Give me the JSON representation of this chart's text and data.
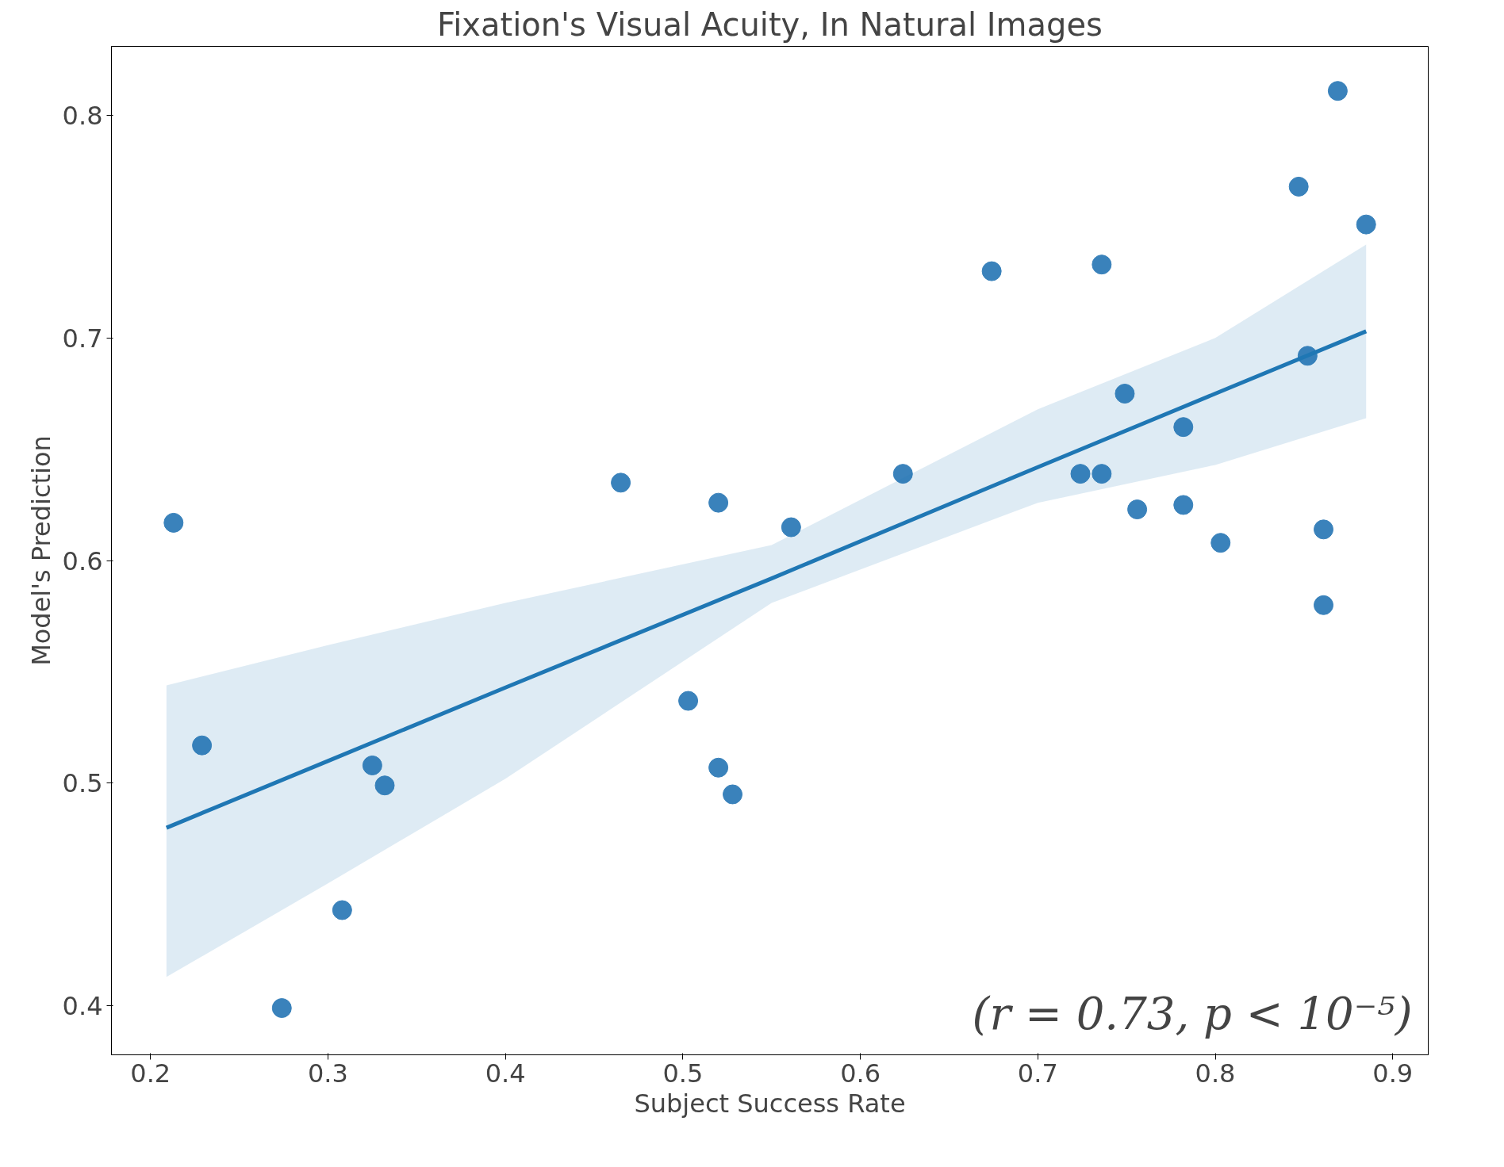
{
  "chart_data": {
    "type": "scatter",
    "title": "Fixation's Visual Acuity, In Natural Images",
    "xlabel": "Subject Success Rate",
    "ylabel": "Model's Prediction",
    "xlim": [
      0.178,
      0.92
    ],
    "ylim": [
      0.378,
      0.831
    ],
    "xticks": [
      0.2,
      0.3,
      0.4,
      0.5,
      0.6,
      0.7,
      0.8,
      0.9
    ],
    "yticks": [
      0.4,
      0.5,
      0.6,
      0.7,
      0.8
    ],
    "grid": false,
    "annotations": [
      "(r = 0.73, p < 10⁻⁵)"
    ],
    "series": [
      {
        "marker": "circle",
        "color": "#3a82bb",
        "x": [
          0.213,
          0.229,
          0.274,
          0.308,
          0.325,
          0.332,
          0.465,
          0.503,
          0.52,
          0.52,
          0.528,
          0.561,
          0.624,
          0.674,
          0.724,
          0.736,
          0.736,
          0.749,
          0.756,
          0.782,
          0.782,
          0.803,
          0.847,
          0.852,
          0.861,
          0.861,
          0.869,
          0.885
        ],
        "values": [
          0.617,
          0.517,
          0.399,
          0.443,
          0.508,
          0.499,
          0.635,
          0.537,
          0.626,
          0.507,
          0.495,
          0.615,
          0.639,
          0.73,
          0.639,
          0.733,
          0.639,
          0.675,
          0.623,
          0.66,
          0.625,
          0.608,
          0.768,
          0.692,
          0.614,
          0.58,
          0.811,
          0.751
        ]
      },
      {
        "type": "line",
        "color": "#1f77b4",
        "x": [
          0.209,
          0.3,
          0.4,
          0.55,
          0.7,
          0.8,
          0.885
        ],
        "values": [
          0.48,
          0.51,
          0.543,
          0.592,
          0.642,
          0.675,
          0.703
        ],
        "lower": [
          0.413,
          0.455,
          0.502,
          0.581,
          0.626,
          0.643,
          0.664
        ],
        "upper": [
          0.544,
          0.562,
          0.581,
          0.607,
          0.668,
          0.7,
          0.742
        ]
      }
    ]
  }
}
